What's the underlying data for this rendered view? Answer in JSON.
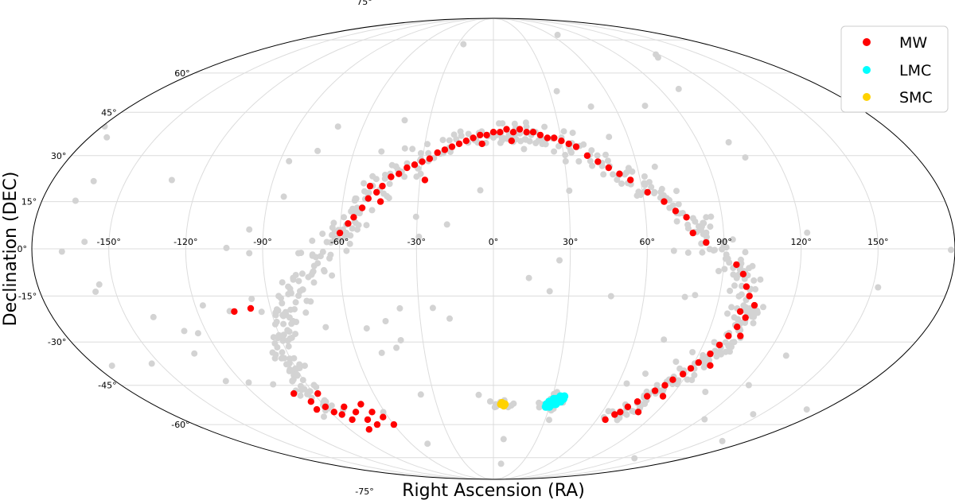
{
  "chart_data": {
    "type": "scatter",
    "projection": "mollweide",
    "title": "",
    "xlabel": "Right Ascension (RA)",
    "ylabel": "Declination (DEC)",
    "xlim": [
      -180,
      180
    ],
    "ylim": [
      -90,
      90
    ],
    "grid": true,
    "legend_position": "top-right",
    "x_ticks": [
      "-150°",
      "-120°",
      "-90°",
      "-60°",
      "-30°",
      "0°",
      "30°",
      "60°",
      "90°",
      "120°",
      "150°"
    ],
    "y_ticks": [
      "-75°",
      "-60°",
      "-45°",
      "-30°",
      "-15°",
      "0°",
      "15°",
      "30°",
      "45°",
      "60°",
      "75°"
    ],
    "background_color": "#d3d3d3",
    "series": [
      {
        "name": "MW",
        "color": "#ff0000",
        "points": [
          [
            0,
            38
          ],
          [
            3,
            38
          ],
          [
            6,
            39
          ],
          [
            9,
            38
          ],
          [
            12,
            39
          ],
          [
            15,
            38
          ],
          [
            18,
            38
          ],
          [
            21,
            37
          ],
          [
            -3,
            37
          ],
          [
            -6,
            37
          ],
          [
            -9,
            36
          ],
          [
            -12,
            35
          ],
          [
            -15,
            34
          ],
          [
            -18,
            33
          ],
          [
            -21,
            32
          ],
          [
            -24,
            31
          ],
          [
            -27,
            29
          ],
          [
            -30,
            28
          ],
          [
            -33,
            27
          ],
          [
            -36,
            26
          ],
          [
            -39,
            24
          ],
          [
            -42,
            23
          ],
          [
            -45,
            20
          ],
          [
            -47,
            18
          ],
          [
            -50,
            16
          ],
          [
            -52,
            13
          ],
          [
            -55,
            10
          ],
          [
            -57,
            8
          ],
          [
            -60,
            5
          ],
          [
            24,
            36
          ],
          [
            27,
            36
          ],
          [
            30,
            35
          ],
          [
            33,
            34
          ],
          [
            36,
            33
          ],
          [
            40,
            30
          ],
          [
            44,
            28
          ],
          [
            48,
            26
          ],
          [
            52,
            24
          ],
          [
            56,
            22
          ],
          [
            62,
            18
          ],
          [
            68,
            15
          ],
          [
            72,
            12
          ],
          [
            76,
            10
          ],
          [
            78,
            5
          ],
          [
            83,
            2
          ],
          [
            -28,
            22
          ],
          [
            -5,
            34
          ],
          [
            8,
            35
          ],
          [
            -50,
            20
          ],
          [
            -45,
            15
          ],
          [
            95,
            -5
          ],
          [
            98,
            -8
          ],
          [
            100,
            -12
          ],
          [
            102,
            -15
          ],
          [
            105,
            -18
          ],
          [
            103,
            -22
          ],
          [
            101,
            -25
          ],
          [
            99,
            -28
          ],
          [
            97,
            -31
          ],
          [
            95,
            -34
          ],
          [
            92,
            -37
          ],
          [
            90,
            -39
          ],
          [
            88,
            -41
          ],
          [
            85,
            -43
          ],
          [
            83,
            -45
          ],
          [
            80,
            -47
          ],
          [
            78,
            -49
          ],
          [
            75,
            -51
          ],
          [
            72,
            -53
          ],
          [
            70,
            -55
          ],
          [
            68,
            -56
          ],
          [
            65,
            -58
          ],
          [
            100,
            -20
          ],
          [
            104,
            -28
          ],
          [
            98,
            -38
          ],
          [
            86,
            -49
          ],
          [
            80,
            -55
          ],
          [
            -60,
            -60
          ],
          [
            -63,
            -57
          ],
          [
            -67,
            -55
          ],
          [
            -70,
            -52
          ],
          [
            -73,
            -58
          ],
          [
            -76,
            -55
          ],
          [
            -80,
            -53
          ],
          [
            -82,
            -58
          ],
          [
            -85,
            -56
          ],
          [
            -88,
            -55
          ],
          [
            -90,
            -53
          ],
          [
            -95,
            -51
          ],
          [
            -100,
            -48
          ],
          [
            -105,
            -20
          ],
          [
            -98,
            -19
          ],
          [
            -88,
            -48
          ],
          [
            -96,
            -54
          ],
          [
            -78,
            -62
          ],
          [
            -70,
            -60
          ]
        ]
      },
      {
        "name": "LMC",
        "color": "#00ffff",
        "center": [
          32,
          -51
        ],
        "points": [
          [
            28,
            -52
          ],
          [
            29,
            -52
          ],
          [
            30,
            -52
          ],
          [
            31,
            -51
          ],
          [
            32,
            -51
          ],
          [
            33,
            -51
          ],
          [
            34,
            -50
          ],
          [
            35,
            -50
          ],
          [
            36,
            -50
          ],
          [
            29,
            -51
          ],
          [
            30,
            -51
          ],
          [
            31,
            -50
          ],
          [
            32,
            -50
          ],
          [
            33,
            -50
          ],
          [
            34,
            -49
          ],
          [
            30,
            -53
          ],
          [
            31,
            -52
          ],
          [
            32,
            -52
          ],
          [
            33,
            -52
          ],
          [
            34,
            -51
          ],
          [
            35,
            -51
          ],
          [
            28,
            -53
          ],
          [
            36,
            -49
          ]
        ]
      },
      {
        "name": "SMC",
        "color": "#ffd200",
        "center": [
          5,
          -52
        ],
        "points": [
          [
            4,
            -52
          ],
          [
            5,
            -52
          ],
          [
            6,
            -52
          ],
          [
            4.5,
            -51.5
          ],
          [
            5.5,
            -52.5
          ]
        ]
      }
    ]
  }
}
